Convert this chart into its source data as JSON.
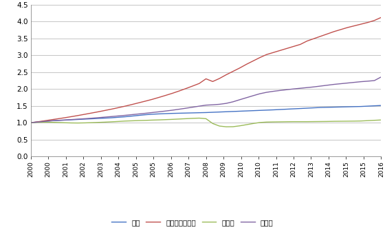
{
  "title": "",
  "ylim": [
    0.0,
    4.5
  ],
  "yticks": [
    0.0,
    0.5,
    1.0,
    1.5,
    2.0,
    2.5,
    3.0,
    3.5,
    4.0,
    4.5
  ],
  "x_labels": [
    "2000",
    "2000",
    "2001",
    "2002",
    "2003",
    "2004",
    "2005",
    "2005",
    "2006",
    "2007",
    "2008",
    "2009",
    "2010",
    "2010",
    "2011",
    "2012",
    "2013",
    "2014",
    "2015",
    "2015",
    "2016"
  ],
  "series": {
    "世界": {
      "color": "#4472C4",
      "values": [
        1.0,
        1.02,
        1.04,
        1.055,
        1.065,
        1.075,
        1.085,
        1.095,
        1.105,
        1.115,
        1.125,
        1.135,
        1.145,
        1.16,
        1.175,
        1.195,
        1.215,
        1.235,
        1.25,
        1.26,
        1.268,
        1.275,
        1.28,
        1.285,
        1.29,
        1.295,
        1.3,
        1.308,
        1.316,
        1.324,
        1.332,
        1.34,
        1.348,
        1.356,
        1.364,
        1.372,
        1.38,
        1.39,
        1.4,
        1.41,
        1.42,
        1.43,
        1.44,
        1.45,
        1.455,
        1.46,
        1.465,
        1.47,
        1.475,
        1.48,
        1.49,
        1.5,
        1.51
      ]
    },
    "新興アジア諸国": {
      "color": "#C0504D",
      "values": [
        1.0,
        1.025,
        1.055,
        1.085,
        1.115,
        1.145,
        1.178,
        1.212,
        1.248,
        1.285,
        1.322,
        1.362,
        1.402,
        1.445,
        1.49,
        1.538,
        1.588,
        1.638,
        1.69,
        1.748,
        1.808,
        1.87,
        1.938,
        2.01,
        2.085,
        2.162,
        2.3,
        2.22,
        2.31,
        2.42,
        2.52,
        2.62,
        2.73,
        2.83,
        2.93,
        3.02,
        3.08,
        3.14,
        3.2,
        3.26,
        3.32,
        3.42,
        3.49,
        3.56,
        3.63,
        3.7,
        3.76,
        3.82,
        3.87,
        3.92,
        3.97,
        4.03,
        4.12
      ]
    },
    "先進国": {
      "color": "#9BBB59",
      "values": [
        1.0,
        1.01,
        1.015,
        1.012,
        1.005,
        0.998,
        0.992,
        0.99,
        0.994,
        1.0,
        1.008,
        1.016,
        1.026,
        1.036,
        1.048,
        1.055,
        1.062,
        1.068,
        1.076,
        1.082,
        1.09,
        1.098,
        1.108,
        1.118,
        1.128,
        1.135,
        1.118,
        0.975,
        0.9,
        0.878,
        0.88,
        0.906,
        0.94,
        0.975,
        1.005,
        1.018,
        1.022,
        1.025,
        1.028,
        1.03,
        1.03,
        1.03,
        1.032,
        1.034,
        1.036,
        1.04,
        1.042,
        1.044,
        1.046,
        1.05,
        1.06,
        1.07,
        1.08
      ]
    },
    "新興国": {
      "color": "#8064A2",
      "values": [
        1.0,
        1.018,
        1.038,
        1.055,
        1.068,
        1.08,
        1.092,
        1.105,
        1.118,
        1.132,
        1.148,
        1.165,
        1.182,
        1.2,
        1.218,
        1.238,
        1.258,
        1.278,
        1.3,
        1.322,
        1.345,
        1.37,
        1.398,
        1.428,
        1.458,
        1.49,
        1.52,
        1.53,
        1.545,
        1.572,
        1.618,
        1.68,
        1.74,
        1.8,
        1.858,
        1.9,
        1.93,
        1.955,
        1.978,
        2.0,
        2.02,
        2.04,
        2.06,
        2.085,
        2.11,
        2.135,
        2.155,
        2.175,
        2.195,
        2.215,
        2.23,
        2.248,
        2.355
      ]
    }
  },
  "n_points": 53,
  "background_color": "#FFFFFF",
  "grid_color": "#BBBBBB",
  "legend_order": [
    "世界",
    "新興アジア諸国",
    "先進国",
    "新興国"
  ]
}
